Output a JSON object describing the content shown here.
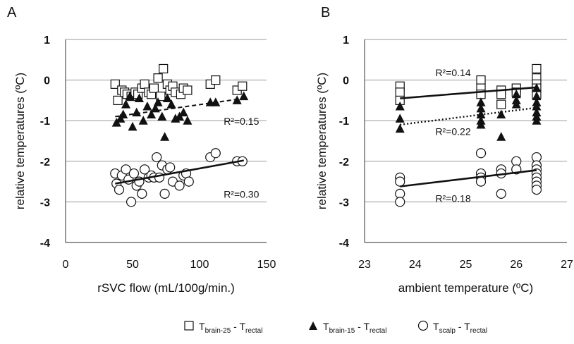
{
  "panels": [
    {
      "letter": "A"
    },
    {
      "letter": "B"
    }
  ],
  "legend": [
    {
      "marker": "square-open",
      "main": "T",
      "sub1": "brain-25",
      "mid": " - T",
      "sub2": "rectal"
    },
    {
      "marker": "triangle-filled",
      "main": "T",
      "sub1": "brain-15",
      "mid": " - T",
      "sub2": "rectal"
    },
    {
      "marker": "circle-open",
      "main": "T",
      "sub1": "scalp",
      "mid": " - T",
      "sub2": "rectal"
    }
  ],
  "chart_data": [
    {
      "panel": "A",
      "type": "scatter",
      "xlabel": "rSVC flow (mL/100g/min.)",
      "ylabel": "relative temperatures (ºC)",
      "xlim": [
        0,
        150
      ],
      "ylim": [
        -4,
        1
      ],
      "xticks": [
        0,
        50,
        100,
        150
      ],
      "yticks": [
        1,
        0,
        -1,
        -2,
        -3,
        -4
      ],
      "grid": "horizontal",
      "series": [
        {
          "marker": "square-open",
          "points": [
            [
              37,
              -0.1
            ],
            [
              39,
              -0.5
            ],
            [
              42,
              -0.25
            ],
            [
              44,
              -0.3
            ],
            [
              46,
              -0.35
            ],
            [
              49,
              -0.4
            ],
            [
              52,
              -0.3
            ],
            [
              54,
              -0.35
            ],
            [
              57,
              -0.2
            ],
            [
              59,
              -0.1
            ],
            [
              62,
              -0.3
            ],
            [
              64,
              -0.35
            ],
            [
              66,
              -0.2
            ],
            [
              69,
              0.05
            ],
            [
              71,
              -0.4
            ],
            [
              73,
              0.28
            ],
            [
              76,
              -0.1
            ],
            [
              78,
              -0.25
            ],
            [
              80,
              -0.15
            ],
            [
              82,
              -0.3
            ],
            [
              86,
              -0.35
            ],
            [
              88,
              -0.2
            ],
            [
              91,
              -0.25
            ],
            [
              108,
              -0.1
            ],
            [
              112,
              0.0
            ],
            [
              128,
              -0.25
            ],
            [
              132,
              -0.15
            ]
          ]
        },
        {
          "marker": "triangle-filled",
          "points": [
            [
              38,
              -1.05
            ],
            [
              41,
              -0.95
            ],
            [
              43,
              -0.85
            ],
            [
              45,
              -0.6
            ],
            [
              48,
              -0.4
            ],
            [
              50,
              -1.15
            ],
            [
              53,
              -0.8
            ],
            [
              55,
              -0.45
            ],
            [
              58,
              -1.0
            ],
            [
              61,
              -0.65
            ],
            [
              64,
              -0.85
            ],
            [
              67,
              -0.7
            ],
            [
              69,
              -0.55
            ],
            [
              72,
              -0.9
            ],
            [
              74,
              -1.4
            ],
            [
              76,
              -0.45
            ],
            [
              79,
              -0.6
            ],
            [
              82,
              -0.95
            ],
            [
              85,
              -0.9
            ],
            [
              88,
              -0.8
            ],
            [
              91,
              -1.0
            ],
            [
              108,
              -0.55
            ],
            [
              112,
              -0.55
            ],
            [
              128,
              -0.5
            ],
            [
              133,
              -0.4
            ]
          ]
        },
        {
          "marker": "circle-open",
          "points": [
            [
              37,
              -2.3
            ],
            [
              38,
              -2.55
            ],
            [
              40,
              -2.7
            ],
            [
              42,
              -2.35
            ],
            [
              45,
              -2.2
            ],
            [
              47,
              -2.45
            ],
            [
              49,
              -3.0
            ],
            [
              51,
              -2.3
            ],
            [
              53,
              -2.6
            ],
            [
              55,
              -2.5
            ],
            [
              57,
              -2.8
            ],
            [
              59,
              -2.2
            ],
            [
              62,
              -2.4
            ],
            [
              64,
              -2.35
            ],
            [
              66,
              -2.4
            ],
            [
              68,
              -1.9
            ],
            [
              70,
              -2.4
            ],
            [
              72,
              -2.1
            ],
            [
              74,
              -2.8
            ],
            [
              76,
              -2.2
            ],
            [
              78,
              -2.15
            ],
            [
              80,
              -2.5
            ],
            [
              85,
              -2.6
            ],
            [
              88,
              -2.35
            ],
            [
              90,
              -2.3
            ],
            [
              92,
              -2.5
            ],
            [
              108,
              -1.9
            ],
            [
              112,
              -1.8
            ],
            [
              128,
              -2.0
            ],
            [
              132,
              -2.0
            ]
          ]
        }
      ],
      "trendlines": [
        {
          "style": "dashed",
          "x": [
            37,
            133
          ],
          "y": [
            -0.9,
            -0.45
          ]
        },
        {
          "style": "solid",
          "x": [
            37,
            133
          ],
          "y": [
            -2.55,
            -1.98
          ]
        }
      ],
      "annotations": [
        {
          "text": "R²=0.15",
          "x": 118,
          "y": -1.1
        },
        {
          "text": "R²=0.30",
          "x": 118,
          "y": -2.9
        }
      ]
    },
    {
      "panel": "B",
      "type": "scatter",
      "xlabel": "ambient temperature (ºC)",
      "ylabel": "relative temperatures (ºC)",
      "xlim": [
        23,
        27
      ],
      "ylim": [
        -4,
        1
      ],
      "xticks": [
        23,
        24,
        25,
        26,
        27
      ],
      "yticks": [
        1,
        0,
        -1,
        -2,
        -3,
        -4
      ],
      "grid": "horizontal",
      "series": [
        {
          "marker": "square-open",
          "points": [
            [
              23.7,
              -0.15
            ],
            [
              23.7,
              -0.3
            ],
            [
              23.7,
              -0.5
            ],
            [
              25.3,
              0.0
            ],
            [
              25.3,
              -0.2
            ],
            [
              25.3,
              -0.35
            ],
            [
              25.7,
              -0.25
            ],
            [
              25.7,
              -0.35
            ],
            [
              25.7,
              -0.6
            ],
            [
              26.0,
              -0.2
            ],
            [
              26.0,
              -0.3
            ],
            [
              26.4,
              0.28
            ],
            [
              26.4,
              0.05
            ],
            [
              26.4,
              -0.1
            ],
            [
              26.4,
              -0.2
            ],
            [
              26.4,
              -0.35
            ]
          ]
        },
        {
          "marker": "triangle-filled",
          "points": [
            [
              23.7,
              -0.65
            ],
            [
              23.7,
              -0.95
            ],
            [
              23.7,
              -1.2
            ],
            [
              25.3,
              -0.55
            ],
            [
              25.3,
              -0.7
            ],
            [
              25.3,
              -0.85
            ],
            [
              25.3,
              -1.0
            ],
            [
              25.3,
              -1.1
            ],
            [
              25.7,
              -0.85
            ],
            [
              25.7,
              -1.4
            ],
            [
              26.0,
              -0.35
            ],
            [
              26.0,
              -0.5
            ],
            [
              26.0,
              -0.6
            ],
            [
              26.4,
              -0.2
            ],
            [
              26.4,
              -0.4
            ],
            [
              26.4,
              -0.55
            ],
            [
              26.4,
              -0.65
            ],
            [
              26.4,
              -0.8
            ],
            [
              26.4,
              -0.9
            ],
            [
              26.4,
              -1.0
            ]
          ]
        },
        {
          "marker": "circle-open",
          "points": [
            [
              23.7,
              -2.4
            ],
            [
              23.7,
              -2.5
            ],
            [
              23.7,
              -2.8
            ],
            [
              23.7,
              -3.0
            ],
            [
              25.3,
              -1.8
            ],
            [
              25.3,
              -2.3
            ],
            [
              25.3,
              -2.4
            ],
            [
              25.3,
              -2.5
            ],
            [
              25.7,
              -2.2
            ],
            [
              25.7,
              -2.3
            ],
            [
              25.7,
              -2.8
            ],
            [
              26.0,
              -2.0
            ],
            [
              26.0,
              -2.2
            ],
            [
              26.4,
              -1.9
            ],
            [
              26.4,
              -2.1
            ],
            [
              26.4,
              -2.2
            ],
            [
              26.4,
              -2.3
            ],
            [
              26.4,
              -2.4
            ],
            [
              26.4,
              -2.5
            ],
            [
              26.4,
              -2.6
            ],
            [
              26.4,
              -2.7
            ]
          ]
        }
      ],
      "trendlines": [
        {
          "style": "solid",
          "x": [
            23.7,
            26.4
          ],
          "y": [
            -0.45,
            -0.18
          ]
        },
        {
          "style": "dotted",
          "x": [
            23.7,
            26.4
          ],
          "y": [
            -1.1,
            -0.68
          ]
        },
        {
          "style": "solid",
          "x": [
            23.7,
            26.4
          ],
          "y": [
            -2.62,
            -2.22
          ]
        }
      ],
      "annotations": [
        {
          "text": "R²=0.14",
          "x": 24.4,
          "y": 0.1
        },
        {
          "text": "R²=0.22",
          "x": 24.4,
          "y": -1.35
        },
        {
          "text": "R²=0.18",
          "x": 24.4,
          "y": -3.0
        }
      ]
    }
  ]
}
